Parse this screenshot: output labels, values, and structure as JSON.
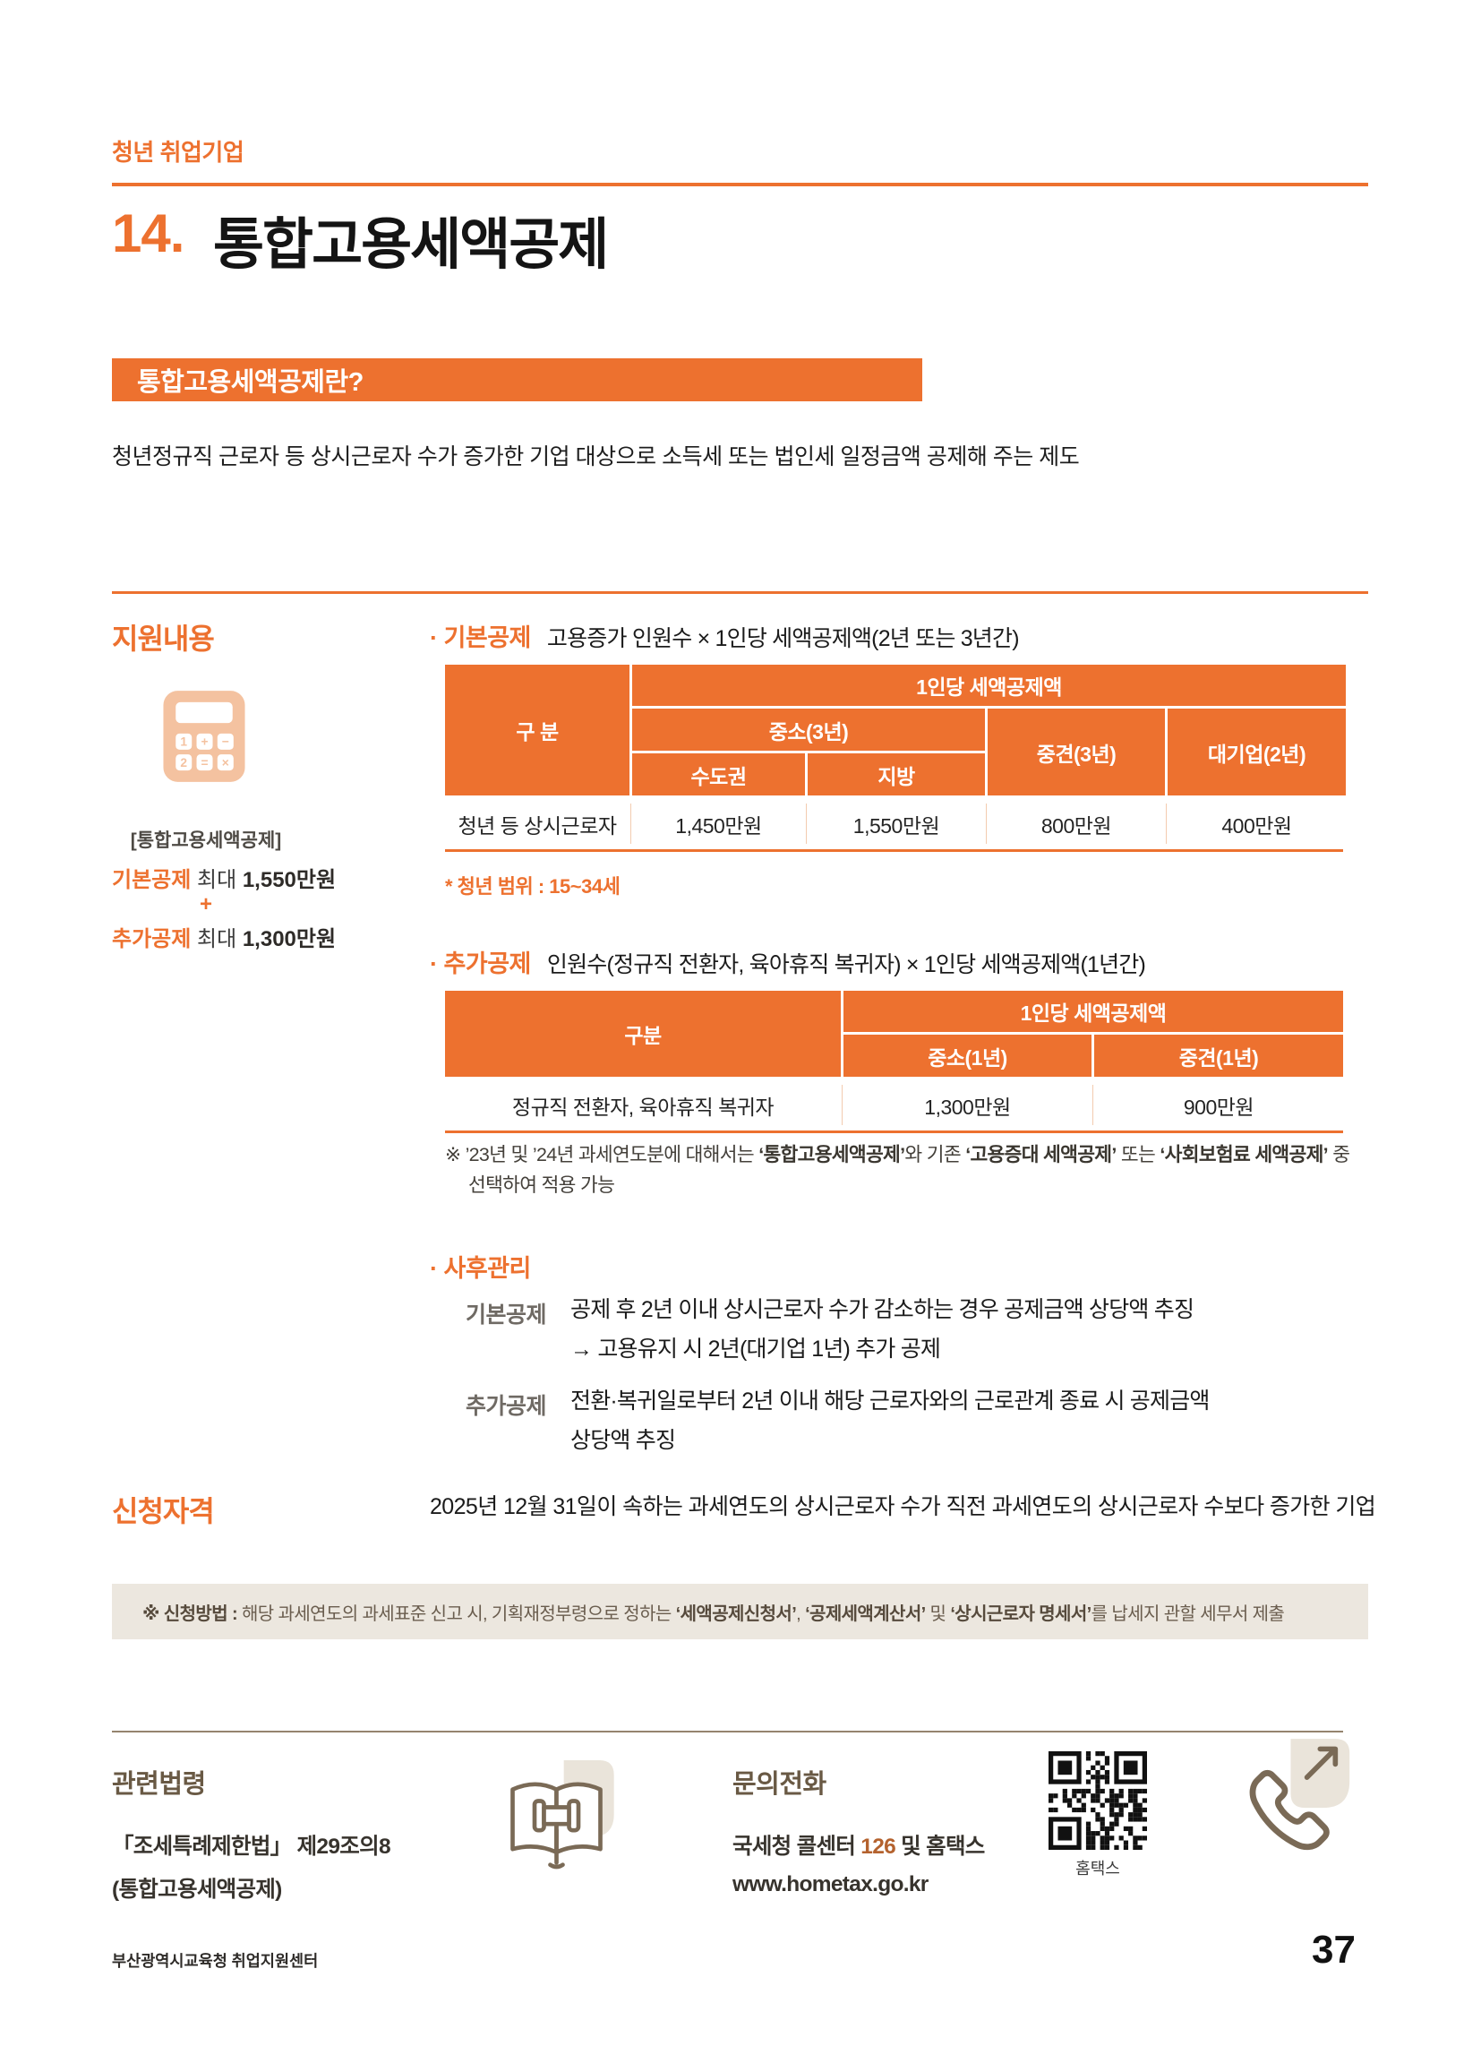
{
  "page": {
    "eyebrow": "청년 취업기업",
    "number_label": "14.",
    "title": "통합고용세액공제",
    "footer_left": "부산광역시교육청 취업지원센터",
    "page_number": "37"
  },
  "bullet_char": "·",
  "definition": {
    "banner": "통합고용세액공제란?",
    "description": "청년정규직 근로자 등 상시근로자 수가 증가한 기업 대상으로 소득세 또는 법인세 일정금액 공제해 주는 제도"
  },
  "support": {
    "heading": "지원내용",
    "sidebar": {
      "icon": "calculator-icon",
      "caption": "[통합고용세액공제]",
      "line1_label": "기본공제",
      "line1_mid": " 최대 ",
      "line1_value": "1,550만원",
      "plus": "+",
      "line2_label": "추가공제",
      "line2_mid": " 최대 ",
      "line2_value": "1,300만원"
    },
    "basic": {
      "bullet_label": "기본공제",
      "formula": "고용증가 인원수 × 1인당 세액공제액(2년 또는 3년간)",
      "table": {
        "col_gubun": "구 분",
        "col_per_person": "1인당 세액공제액",
        "col_sme": "중소(3년)",
        "col_capital": "수도권",
        "col_region": "지방",
        "col_mid": "중견(3년)",
        "col_large": "대기업(2년)",
        "row_label": "청년 등 상시근로자",
        "val_capital": "1,450만원",
        "val_region": "1,550만원",
        "val_mid": "800만원",
        "val_large": "400만원"
      },
      "note": "* 청년 범위 : 15~34세"
    },
    "additional": {
      "bullet_label": "추가공제",
      "formula": "인원수(정규직 전환자, 육아휴직 복귀자) × 1인당 세액공제액(1년간)",
      "table": {
        "col_gubun": "구분",
        "col_per_person": "1인당 세액공제액",
        "col_sme": "중소(1년)",
        "col_mid": "중견(1년)",
        "row_label": "정규직 전환자, 육아휴직 복귀자",
        "val_sme": "1,300만원",
        "val_mid": "900만원"
      },
      "note_prefix": "※ ’23년 및 ’24년 과세연도분에 대해서는 ",
      "note_bold1": "‘통합고용세액공제’",
      "note_mid1": "와 기존 ",
      "note_bold2": "‘고용증대 세액공제’",
      "note_mid2": " 또는 ",
      "note_bold3": "‘사회보험료 세액공제’",
      "note_suffix": " 중",
      "note_line2": "선택하여 적용 가능"
    },
    "aftercare": {
      "bullet_label": "사후관리",
      "basic_label": "기본공제",
      "basic_line1": "공제 후 2년 이내 상시근로자 수가 감소하는 경우 공제금액 상당액 추징",
      "basic_line2": "→ 고용유지 시 2년(대기업 1년) 추가 공제",
      "add_label": "추가공제",
      "add_line1": "전환·복귀일로부터 2년 이내 해당 근로자와의 근로관계 종료 시 공제금액",
      "add_line2": "상당액 추징"
    }
  },
  "eligibility": {
    "heading": "신청자격",
    "text": "2025년 12월 31일이 속하는 과세연도의 상시근로자 수가 직전 과세연도의 상시근로자 수보다 증가한 기업"
  },
  "method_note": {
    "prefix": "※ 신청방법 : ",
    "body1": "해당 과세연도의 과세표준 신고 시, 기획재정부령으로 정하는 ",
    "bold1": "‘세액공제신청서’",
    "mid1": ", ",
    "bold2": "‘공제세액계산서’",
    "mid2": " 및 ",
    "bold3": "‘상시근로자 명세서’",
    "suffix": "를 납세지 관할 세무서 제출"
  },
  "footer_info": {
    "law": {
      "heading": "관련법령",
      "line1": "「조세특례제한법」 제29조의8",
      "line2": "(통합고용세액공제)"
    },
    "contact": {
      "heading": "문의전화",
      "line1_pre": "국세청 콜센터 ",
      "line1_num": "126",
      "line1_post": " 및 홈택스",
      "line2": "www.hometax.go.kr",
      "qr_caption": "홈택스"
    }
  },
  "colors": {
    "accent_orange": "#ED712F",
    "peach": "#F4C2A0",
    "beige_bar": "#ECE7DF",
    "brown": "#695944"
  }
}
